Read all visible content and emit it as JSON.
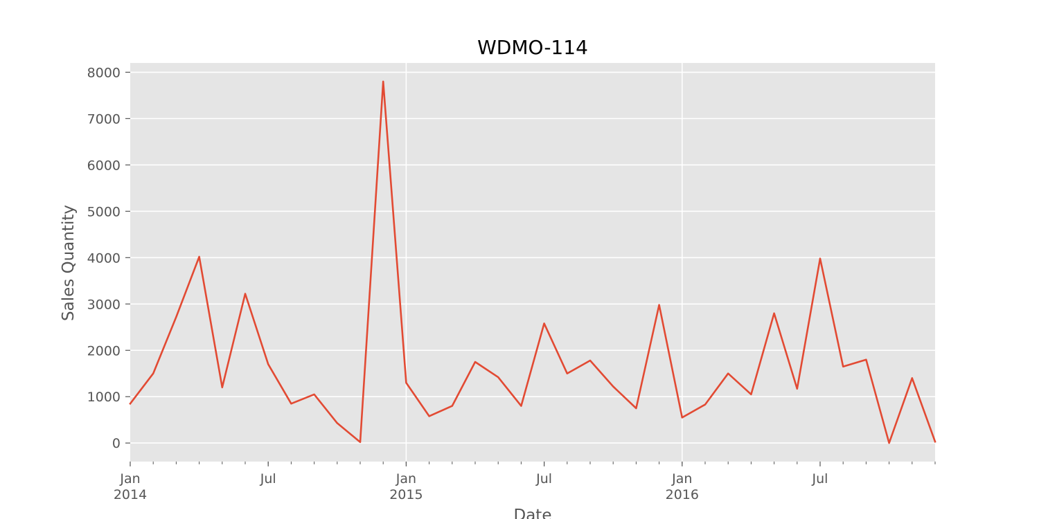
{
  "chart_data": {
    "type": "line",
    "title": "WDMO-114",
    "xlabel": "Date",
    "ylabel": "Sales Quantity",
    "grid": true,
    "ylim": [
      -400,
      8200
    ],
    "xlim_month_index": [
      0,
      35
    ],
    "colors": {
      "plot_bg": "#e5e5e5",
      "grid": "#ffffff",
      "line": "#e24a33",
      "tick_text": "#555555",
      "title": "#000000"
    },
    "y_ticks": [
      0,
      1000,
      2000,
      3000,
      4000,
      5000,
      6000,
      7000,
      8000
    ],
    "y_tick_labels": [
      "0",
      "1000",
      "2000",
      "3000",
      "4000",
      "5000",
      "6000",
      "7000",
      "8000"
    ],
    "x_major_ticks": [
      {
        "month_index": 0,
        "label": "Jan",
        "sublabel": "2014"
      },
      {
        "month_index": 6,
        "label": "Jul",
        "sublabel": ""
      },
      {
        "month_index": 12,
        "label": "Jan",
        "sublabel": "2015"
      },
      {
        "month_index": 18,
        "label": "Jul",
        "sublabel": ""
      },
      {
        "month_index": 24,
        "label": "Jan",
        "sublabel": "2016"
      },
      {
        "month_index": 30,
        "label": "Jul",
        "sublabel": ""
      }
    ],
    "x_grid_month_indices": [
      12,
      24
    ],
    "series": [
      {
        "name": "WDMO-114",
        "x": [
          "2014-01",
          "2014-02",
          "2014-03",
          "2014-04",
          "2014-05",
          "2014-06",
          "2014-07",
          "2014-08",
          "2014-09",
          "2014-10",
          "2014-11",
          "2014-12",
          "2015-01",
          "2015-02",
          "2015-03",
          "2015-04",
          "2015-05",
          "2015-06",
          "2015-07",
          "2015-08",
          "2015-09",
          "2015-10",
          "2015-11",
          "2015-12",
          "2016-01",
          "2016-02",
          "2016-03",
          "2016-04",
          "2016-05",
          "2016-06",
          "2016-07",
          "2016-08",
          "2016-09",
          "2016-10",
          "2016-11",
          "2016-12"
        ],
        "values": [
          850,
          1500,
          2720,
          4020,
          1200,
          3220,
          1700,
          850,
          1050,
          430,
          20,
          7800,
          1300,
          580,
          800,
          1750,
          1420,
          800,
          2580,
          1500,
          1780,
          1220,
          750,
          2980,
          550,
          830,
          1500,
          1050,
          2800,
          1170,
          3980,
          1650,
          1800,
          0,
          1400,
          30
        ]
      }
    ]
  }
}
